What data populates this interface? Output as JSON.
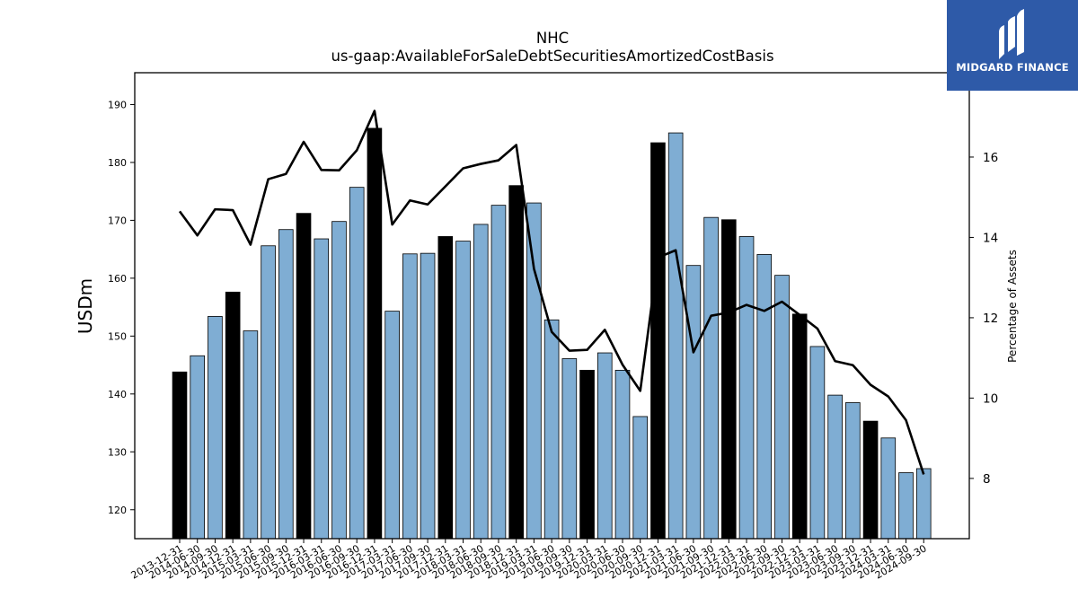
{
  "brand": {
    "name": "MIDGARD FINANCE",
    "color": "#2e5aa8",
    "icon": "midgard-logo-icon"
  },
  "chart_data": {
    "type": "bar",
    "title": "NHC",
    "subtitle": "us-gaap:AvailableForSaleDebtSecuritiesAmortizedCostBasis",
    "ylabel": "USDm",
    "y2label": "Percentage of Assets",
    "ylim": [
      115,
      195.5
    ],
    "y2lim": [
      6.5,
      18.1
    ],
    "yticks": [
      120,
      130,
      140,
      150,
      160,
      170,
      180,
      190
    ],
    "y2ticks": [
      8,
      10,
      12,
      14,
      16
    ],
    "categories": [
      "2013-12-31",
      "2014-06-30",
      "2014-09-30",
      "2014-12-31",
      "2015-03-31",
      "2015-06-30",
      "2015-09-30",
      "2015-12-31",
      "2016-03-31",
      "2016-06-30",
      "2016-09-30",
      "2016-12-31",
      "2017-03-31",
      "2017-06-30",
      "2017-09-30",
      "2017-12-31",
      "2018-03-31",
      "2018-06-30",
      "2018-09-30",
      "2018-12-31",
      "2019-03-31",
      "2019-06-30",
      "2019-09-30",
      "2019-12-31",
      "2020-03-31",
      "2020-06-30",
      "2020-09-30",
      "2020-12-31",
      "2021-03-31",
      "2021-06-30",
      "2021-09-30",
      "2021-12-31",
      "2022-03-31",
      "2022-06-30",
      "2022-09-30",
      "2022-12-31",
      "2023-03-31",
      "2023-06-30",
      "2023-09-30",
      "2023-12-31",
      "2024-03-31",
      "2024-06-30",
      "2024-09-30"
    ],
    "series": [
      {
        "values": [
          143.8,
          146.6,
          153.4,
          157.6,
          150.9,
          165.6,
          168.4,
          171.2,
          166.8,
          169.8,
          175.7,
          185.9,
          154.3,
          164.2,
          164.3,
          167.2,
          166.4,
          169.3,
          172.6,
          176.0,
          173.0,
          152.8,
          146.1,
          144.1,
          147.1,
          144.1,
          136.1,
          183.4,
          185.1,
          162.2,
          170.5,
          170.1,
          167.2,
          164.1,
          160.5,
          153.8,
          148.2,
          139.8,
          138.5,
          135.3,
          132.4,
          126.4,
          127.1
        ],
        "highlight": [
          true,
          false,
          false,
          true,
          false,
          false,
          false,
          true,
          false,
          false,
          false,
          true,
          false,
          false,
          false,
          true,
          false,
          false,
          false,
          true,
          false,
          false,
          false,
          true,
          false,
          false,
          false,
          true,
          false,
          false,
          false,
          true,
          false,
          false,
          false,
          true,
          false,
          false,
          false,
          true,
          false,
          false,
          false
        ]
      },
      {
        "values": [
          14.65,
          14.05,
          14.7,
          14.68,
          13.82,
          15.45,
          15.58,
          16.38,
          15.68,
          15.67,
          16.17,
          17.15,
          14.32,
          14.92,
          14.82,
          15.27,
          15.72,
          15.83,
          15.92,
          16.3,
          13.22,
          11.65,
          11.18,
          11.2,
          11.7,
          10.83,
          10.18,
          13.5,
          13.68,
          11.14,
          12.05,
          12.13,
          12.32,
          12.17,
          12.4,
          12.07,
          11.73,
          10.92,
          10.82,
          10.33,
          10.04,
          9.45,
          8.1
        ]
      }
    ],
    "colors": {
      "bar": "#7fadd3",
      "bar_highlight": "#000000",
      "line": "#000000"
    }
  }
}
